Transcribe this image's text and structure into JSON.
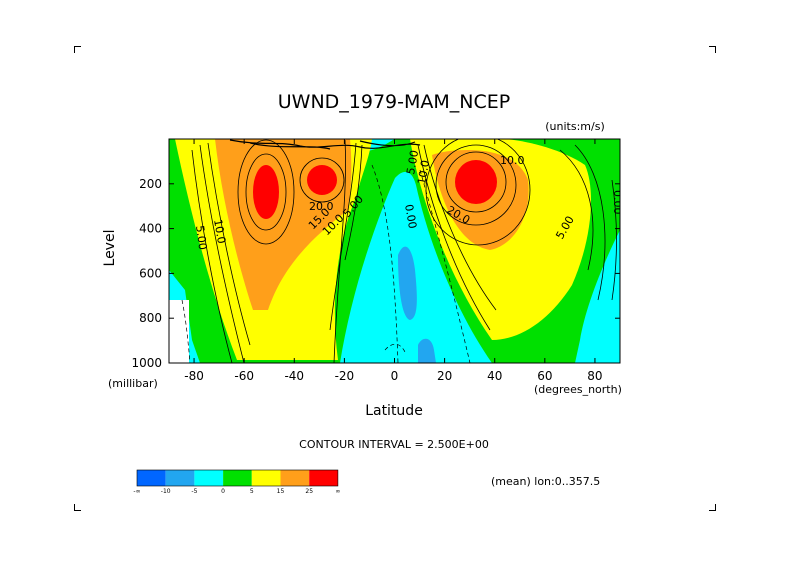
{
  "chart_data": {
    "type": "heatmap",
    "title": "UWND_1979-MAM_NCEP",
    "units": "(units:m/s)",
    "xlabel": "Latitude",
    "ylabel": "Level",
    "x_unit": "(degrees_north)",
    "y_unit": "(millibar)",
    "x_ticks": [
      "-80",
      "-60",
      "-40",
      "-20",
      "0",
      "20",
      "40",
      "60",
      "80"
    ],
    "y_ticks": [
      "200",
      "400",
      "600",
      "800",
      "1000"
    ],
    "xlim": [
      -90,
      90
    ],
    "ylim": [
      1000,
      0
    ],
    "contour_interval": "CONTOUR INTERVAL = 2.500E+00",
    "subset_note": "(mean) lon:0..357.5",
    "contour_labels": [
      "10.0",
      "5.00",
      "20.0",
      "15.0",
      "10.0",
      "5.00",
      "0.00",
      "5.00",
      "10.0",
      "20.0",
      "10.0",
      "5.00",
      "0.00"
    ],
    "colorbar": {
      "labels": [
        "-∞",
        "-10",
        "-5",
        "0",
        "5",
        "15",
        "25",
        "∞"
      ],
      "colors": [
        "#0066ff",
        "#22a6f0",
        "#00ffff",
        "#00e000",
        "#ffff00",
        "#ff9f1a",
        "#ff0000"
      ]
    },
    "jets": [
      {
        "lat": -53,
        "level": 260,
        "max": 27
      },
      {
        "lat": -30,
        "level": 175,
        "max": 26
      },
      {
        "lat": 30,
        "level": 180,
        "max": 32
      }
    ]
  }
}
